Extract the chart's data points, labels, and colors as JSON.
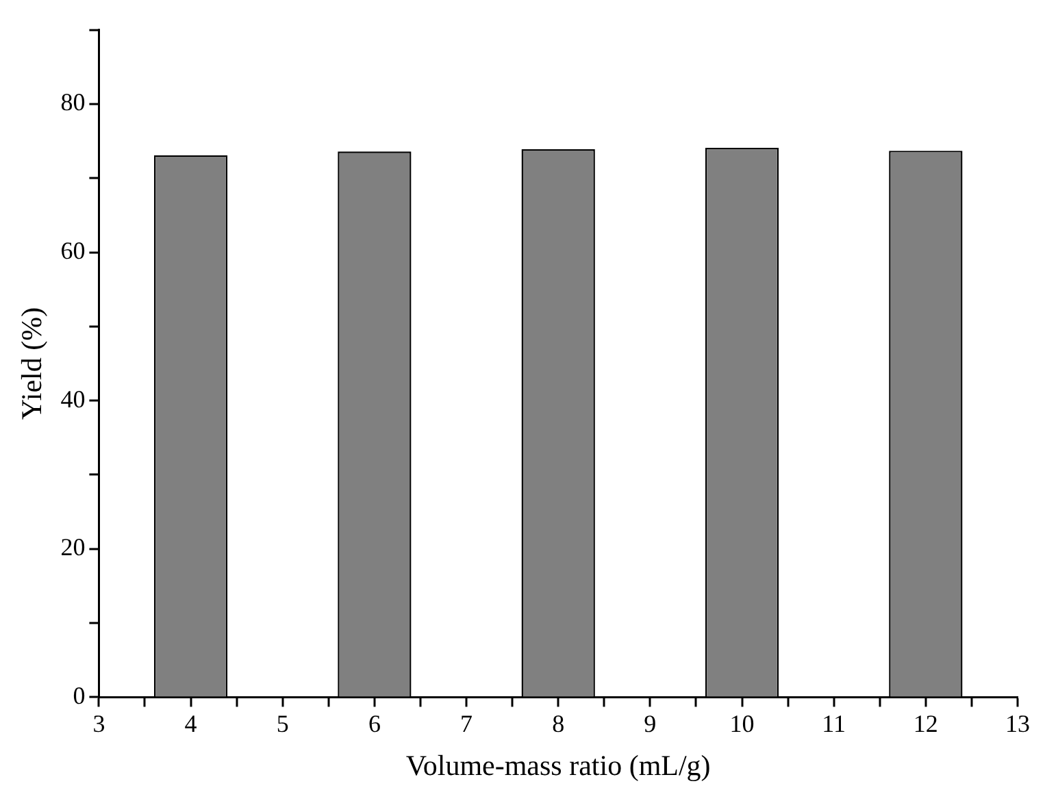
{
  "chart_data": {
    "type": "bar",
    "xlabel": "Volume-mass ratio (mL/g)",
    "ylabel": "Yield (%)",
    "x": [
      4,
      6,
      8,
      10,
      12
    ],
    "values": [
      73.1,
      73.6,
      73.9,
      74.1,
      73.7
    ],
    "color": "#808080",
    "xlim": [
      3,
      13
    ],
    "xticks": [
      3,
      {
        "value": 3.5,
        "label": null
      },
      4,
      {
        "value": 4.5,
        "label": null
      },
      5,
      {
        "value": 5.5,
        "label": null
      },
      6,
      {
        "value": 6.5,
        "label": null
      },
      7,
      {
        "value": 7.5,
        "label": null
      },
      8,
      {
        "value": 8.5,
        "label": null
      },
      9,
      {
        "value": 9.5,
        "label": null
      },
      10,
      {
        "value": 10.5,
        "label": null
      },
      11,
      {
        "value": 11.5,
        "label": null
      },
      12,
      {
        "value": 12.5,
        "label": null
      },
      13
    ],
    "ylim": [
      0,
      90
    ],
    "yticks": [
      0,
      {
        "value": 10,
        "label": null
      },
      20,
      {
        "value": 30,
        "label": null
      },
      40,
      {
        "value": 50,
        "label": null
      },
      60,
      {
        "value": 70,
        "label": null
      },
      80,
      {
        "value": 90,
        "label": null
      }
    ],
    "grid": false,
    "legend": false
  }
}
